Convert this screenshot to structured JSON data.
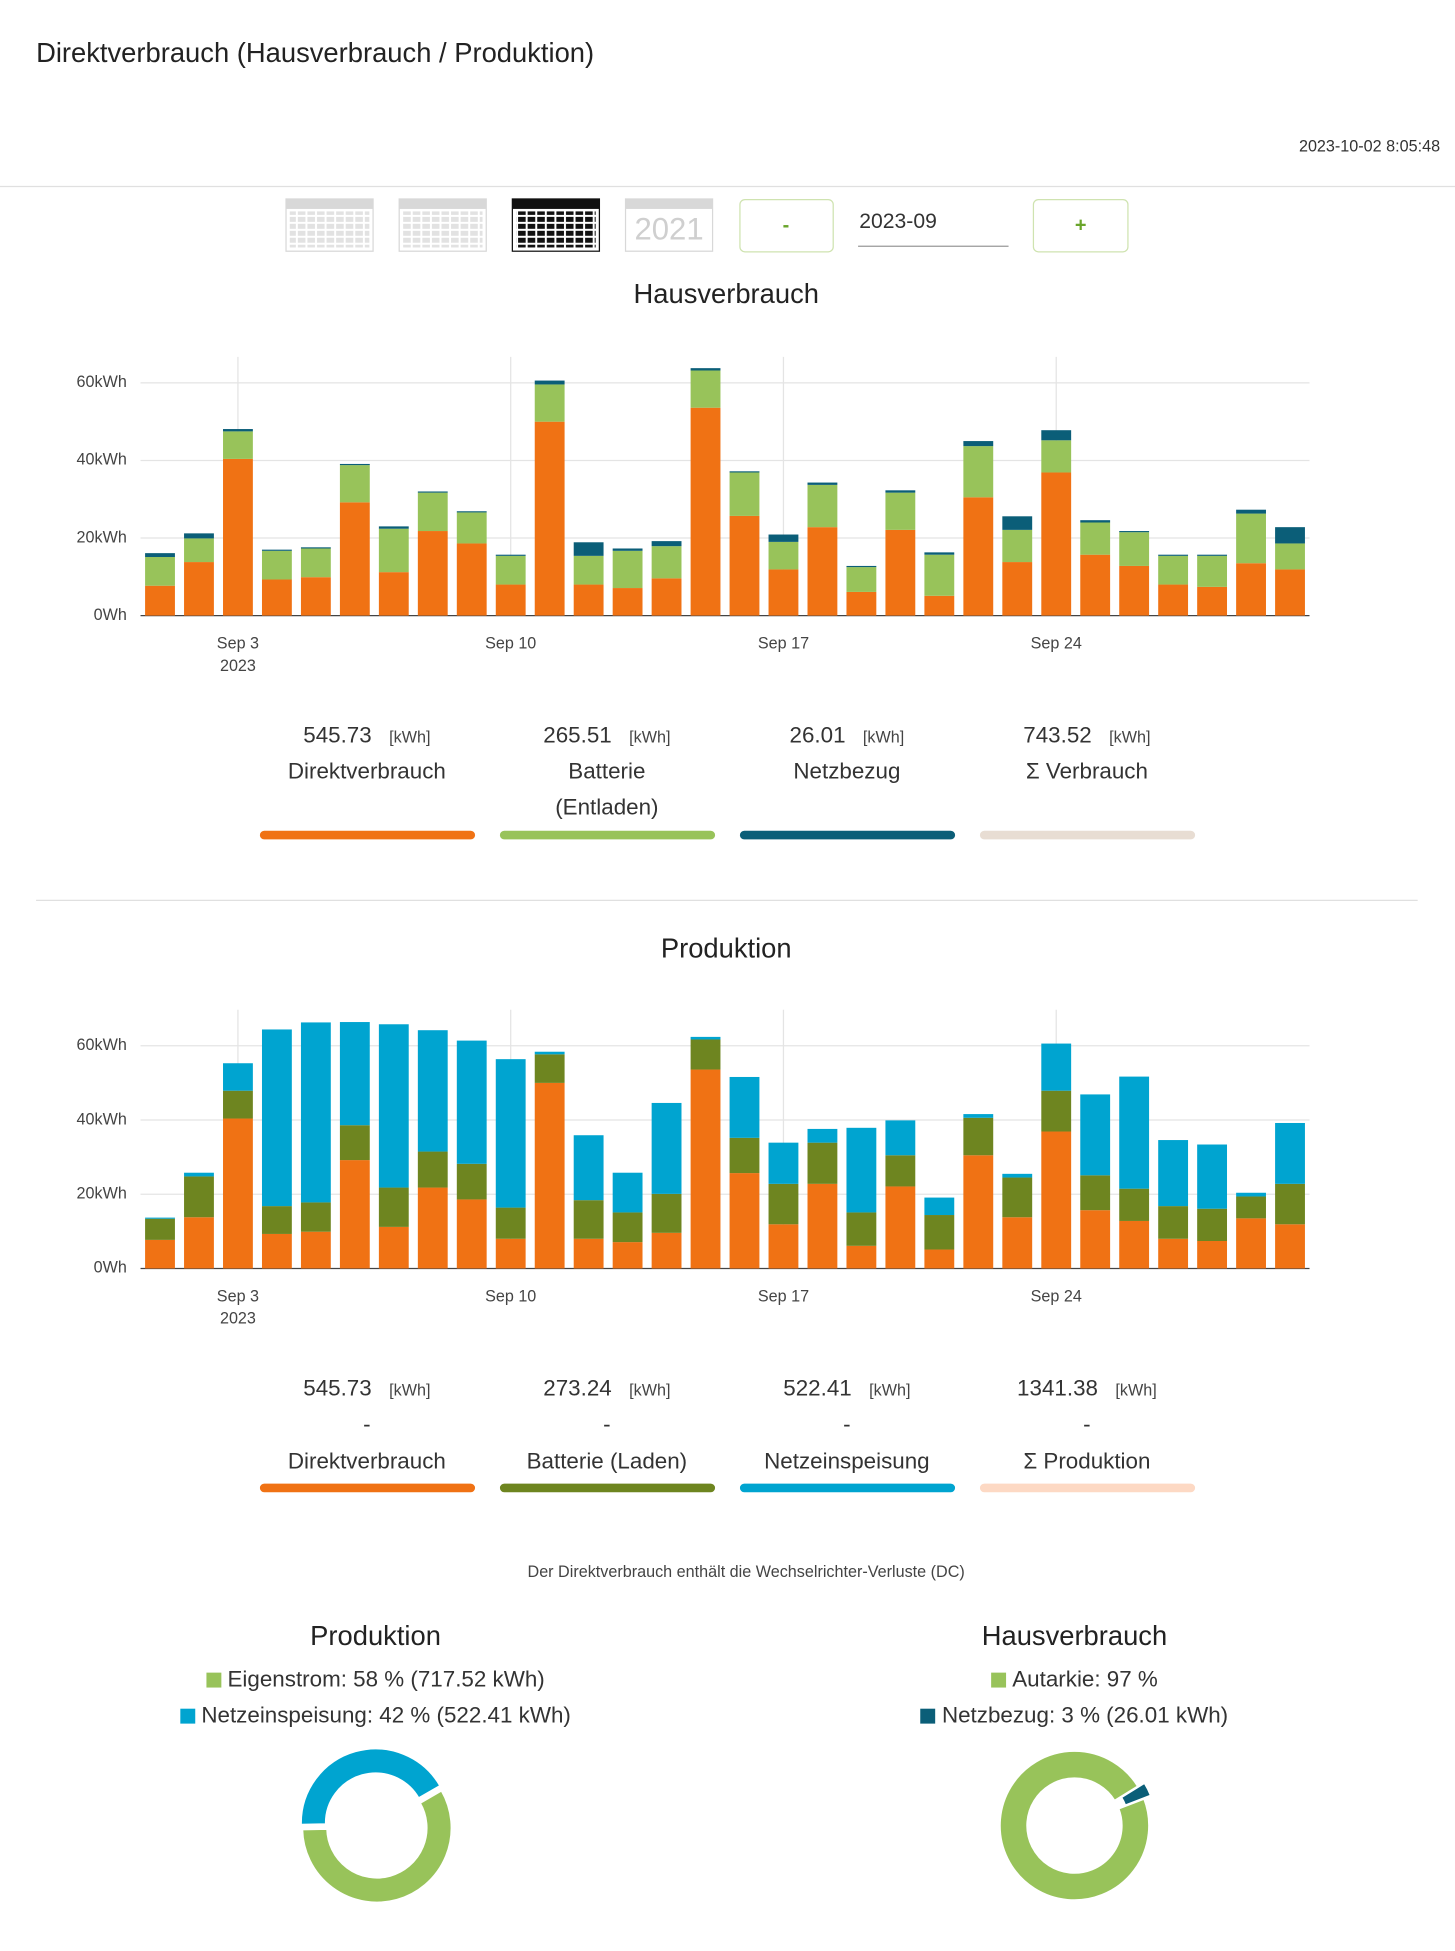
{
  "header": {
    "title": "Direktverbrauch (Hausverbrauch / Produktion)",
    "timestamp": "2023-10-02 8:05:48"
  },
  "controls": {
    "year_icon": "2021",
    "minus": "-",
    "plus": "+",
    "period": "2023-09"
  },
  "footnote": "Der Direktverbrauch enthält die Wechselrichter-Verluste (DC)",
  "chart_data": [
    {
      "type": "bar",
      "stacked": true,
      "title": "Hausverbrauch",
      "x": [
        "2023-09-01",
        "2023-09-02",
        "2023-09-03",
        "2023-09-04",
        "2023-09-05",
        "2023-09-06",
        "2023-09-07",
        "2023-09-08",
        "2023-09-09",
        "2023-09-10",
        "2023-09-11",
        "2023-09-12",
        "2023-09-13",
        "2023-09-14",
        "2023-09-15",
        "2023-09-16",
        "2023-09-17",
        "2023-09-18",
        "2023-09-19",
        "2023-09-20",
        "2023-09-21",
        "2023-09-22",
        "2023-09-23",
        "2023-09-24",
        "2023-09-25",
        "2023-09-26",
        "2023-09-27",
        "2023-09-28",
        "2023-09-29",
        "2023-09-30"
      ],
      "xticks": [
        {
          "value": "2023-09-03",
          "label": "Sep 3",
          "sublabel": "2023"
        },
        {
          "value": "2023-09-10",
          "label": "Sep 10"
        },
        {
          "value": "2023-09-17",
          "label": "Sep 17"
        },
        {
          "value": "2023-09-24",
          "label": "Sep 24"
        }
      ],
      "ylim": [
        0,
        66.7
      ],
      "yticks": [
        {
          "value": 0,
          "label": "0Wh"
        },
        {
          "value": 20,
          "label": "20kWh"
        },
        {
          "value": 40,
          "label": "40kWh"
        },
        {
          "value": 60,
          "label": "60kWh"
        }
      ],
      "grid": true,
      "unit": "[kWh]",
      "series": [
        {
          "name": "Direktverbrauch",
          "color": "#f07214",
          "total": 545.73,
          "values": [
            7.7,
            13.8,
            40.4,
            9.3,
            9.9,
            29.2,
            11.2,
            21.8,
            18.6,
            8.0,
            50.0,
            8.0,
            7.1,
            9.6,
            53.6,
            25.7,
            11.9,
            22.8,
            6.1,
            22.1,
            5.1,
            30.5,
            13.8,
            36.9,
            15.7,
            12.8,
            8.0,
            7.4,
            13.5,
            11.9
          ]
        },
        {
          "name": "Batterie (Entladen)",
          "color": "#98c35a",
          "total": 265.51,
          "values": [
            7.4,
            6.1,
            7.1,
            7.4,
            7.4,
            9.6,
            11.2,
            9.9,
            8.0,
            7.4,
            9.6,
            7.4,
            9.6,
            8.3,
            9.6,
            11.2,
            7.1,
            10.9,
            6.4,
            9.6,
            10.6,
            13.2,
            8.3,
            8.3,
            8.3,
            8.7,
            7.4,
            8.0,
            12.8,
            6.7
          ]
        },
        {
          "name": "Netzbezug",
          "color": "#0b5e78",
          "total": 26.01,
          "values": [
            1.0,
            1.3,
            0.6,
            0.3,
            0.3,
            0.3,
            0.6,
            0.3,
            0.3,
            0.3,
            1.0,
            3.5,
            0.6,
            1.3,
            0.6,
            0.3,
            1.9,
            0.6,
            0.3,
            0.6,
            0.6,
            1.3,
            3.5,
            2.6,
            0.6,
            0.3,
            0.3,
            0.3,
            1.0,
            4.2
          ]
        }
      ],
      "total": {
        "name": "Σ Verbrauch",
        "value": 743.52,
        "color": "#e8ddd3"
      }
    },
    {
      "type": "bar",
      "stacked": true,
      "title": "Produktion",
      "x": [
        "2023-09-01",
        "2023-09-02",
        "2023-09-03",
        "2023-09-04",
        "2023-09-05",
        "2023-09-06",
        "2023-09-07",
        "2023-09-08",
        "2023-09-09",
        "2023-09-10",
        "2023-09-11",
        "2023-09-12",
        "2023-09-13",
        "2023-09-14",
        "2023-09-15",
        "2023-09-16",
        "2023-09-17",
        "2023-09-18",
        "2023-09-19",
        "2023-09-20",
        "2023-09-21",
        "2023-09-22",
        "2023-09-23",
        "2023-09-24",
        "2023-09-25",
        "2023-09-26",
        "2023-09-27",
        "2023-09-28",
        "2023-09-29",
        "2023-09-30"
      ],
      "xticks": [
        {
          "value": "2023-09-03",
          "label": "Sep 3",
          "sublabel": "2023"
        },
        {
          "value": "2023-09-10",
          "label": "Sep 10"
        },
        {
          "value": "2023-09-17",
          "label": "Sep 17"
        },
        {
          "value": "2023-09-24",
          "label": "Sep 24"
        }
      ],
      "ylim": [
        0,
        69.7
      ],
      "yticks": [
        {
          "value": 0,
          "label": "0Wh"
        },
        {
          "value": 20,
          "label": "20kWh"
        },
        {
          "value": 40,
          "label": "40kWh"
        },
        {
          "value": 60,
          "label": "60kWh"
        }
      ],
      "grid": true,
      "unit": "[kWh]",
      "separator": "-",
      "series": [
        {
          "name": "Direktverbrauch",
          "color": "#f07214",
          "total": 545.73,
          "values": [
            7.7,
            13.8,
            40.4,
            9.3,
            9.9,
            29.2,
            11.2,
            21.8,
            18.6,
            8.0,
            50.0,
            8.0,
            7.1,
            9.6,
            53.6,
            25.7,
            11.9,
            22.8,
            6.1,
            22.1,
            5.1,
            30.5,
            13.8,
            36.9,
            15.7,
            12.8,
            8.0,
            7.4,
            13.5,
            11.9
          ]
        },
        {
          "name": "Batterie (Laden)",
          "color": "#6e8520",
          "total": 273.24,
          "values": [
            5.7,
            11.0,
            7.5,
            7.5,
            7.9,
            9.4,
            10.6,
            9.7,
            9.6,
            8.4,
            7.7,
            10.4,
            8.0,
            10.5,
            8.1,
            9.5,
            10.9,
            11.1,
            9.0,
            8.4,
            9.3,
            10.1,
            10.7,
            11.0,
            9.4,
            8.7,
            8.8,
            8.7,
            5.9,
            10.9
          ]
        },
        {
          "name": "Netzeinspeisung",
          "color": "#00a4d0",
          "total": 522.41,
          "values": [
            0.3,
            1.0,
            7.4,
            47.6,
            48.5,
            27.8,
            44.0,
            32.7,
            33.2,
            40.0,
            0.7,
            17.5,
            10.7,
            24.5,
            0.7,
            16.4,
            11.1,
            3.7,
            22.8,
            9.4,
            4.7,
            1.0,
            1.0,
            12.7,
            21.8,
            30.2,
            17.8,
            17.3,
            1.0,
            16.4
          ]
        }
      ],
      "total": {
        "name": "Σ Produktion",
        "value": 1341.38,
        "color": "#fdd9c4"
      }
    },
    {
      "type": "pie",
      "donut": true,
      "title": "Produktion",
      "categories": [
        "Eigenstrom: 58 % (717.52 kWh)",
        "Netzeinspeisung: 42 % (522.41 kWh)"
      ],
      "values": [
        58,
        42
      ],
      "colors": [
        "#98c35a",
        "#00a4d0"
      ]
    },
    {
      "type": "pie",
      "donut": true,
      "title": "Hausverbrauch",
      "categories": [
        "Autarkie: 97 %",
        "Netzbezug: 3 % (26.01 kWh)"
      ],
      "values": [
        97,
        3
      ],
      "colors": [
        "#98c35a",
        "#0b5e78"
      ]
    }
  ]
}
